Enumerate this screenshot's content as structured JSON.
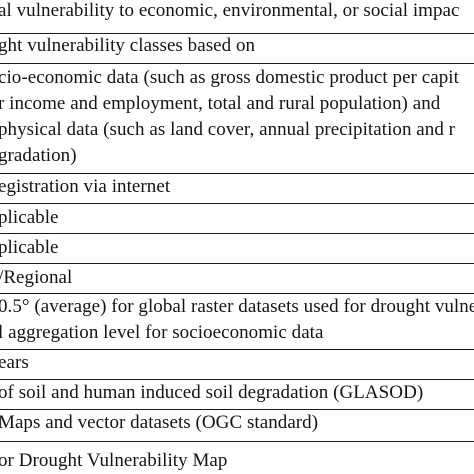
{
  "table": {
    "rows": [
      {
        "lines": [
          "al vulnerability to economic, environmental, or social impac"
        ]
      },
      {
        "lines": [
          "ght vulnerability classes based on"
        ]
      },
      {
        "lines": [
          "cio-economic data (such as gross domestic product per capit",
          "r income and employment, total and rural population) and",
          "physical data (such as land cover, annual precipitation and r",
          "gradation)"
        ]
      },
      {
        "lines": [
          "egistration via internet"
        ]
      },
      {
        "lines": [
          "plicable"
        ]
      },
      {
        "lines": [
          "plicable"
        ]
      },
      {
        "lines": [
          "/Regional"
        ]
      },
      {
        "lines": [
          "0.5° (average) for global raster datasets used for drought vulne",
          "l aggregation level for socioeconomic data"
        ]
      },
      {
        "lines": [
          "ears"
        ]
      },
      {
        "lines": [
          "of soil and human induced soil degradation (GLASOD)"
        ]
      },
      {
        "lines": [
          "Maps and vector datasets (OGC standard)"
        ]
      },
      {
        "lines": [
          "or Drought Vulnerability Map"
        ]
      }
    ]
  }
}
